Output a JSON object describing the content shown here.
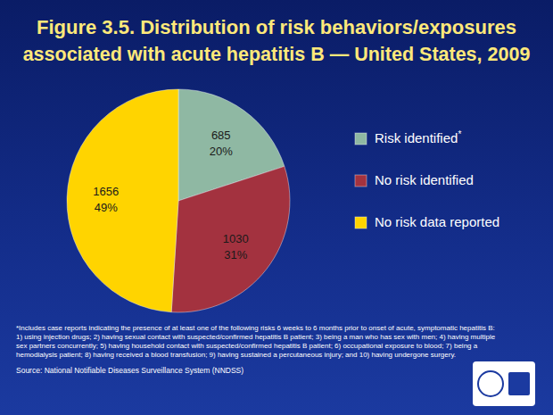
{
  "chart_data": {
    "type": "pie",
    "title": [
      "Figure 3.5. Distribution of risk behaviors/exposures",
      "associated with acute hepatitis B — United States, 2009"
    ],
    "categories": [
      "Risk identified*",
      "No risk identified",
      "No risk data reported"
    ],
    "values": [
      20,
      31,
      49
    ],
    "value_labels": [
      "20%",
      "31%",
      "49%"
    ],
    "counts": [
      685,
      1030,
      1656
    ],
    "colors": [
      "#8fb8a3",
      "#a3323f",
      "#ffd400"
    ],
    "legend": "right",
    "data_labels": true,
    "footnote": [
      "*Includes case reports indicating the presence of at least one of the following risks 6 weeks to 6 months prior to onset of acute, symptomatic hepatitis B:",
      "1) using injection drugs; 2) having sexual contact with suspected/confirmed hepatitis B patient; 3) being a man who has sex with men; 4) having multiple",
      "sex partners concurrently; 5) having household contact with suspected/confirmed hepatitis B patient; 6) occupational exposure to blood; 7) being a",
      "hemodialysis patient; 8) having received a blood transfusion; 9) having sustained a percutaneous injury; and 10) having undergone surgery."
    ],
    "source": "Source: National Notifiable Diseases Surveillance System (NNDSS)"
  }
}
